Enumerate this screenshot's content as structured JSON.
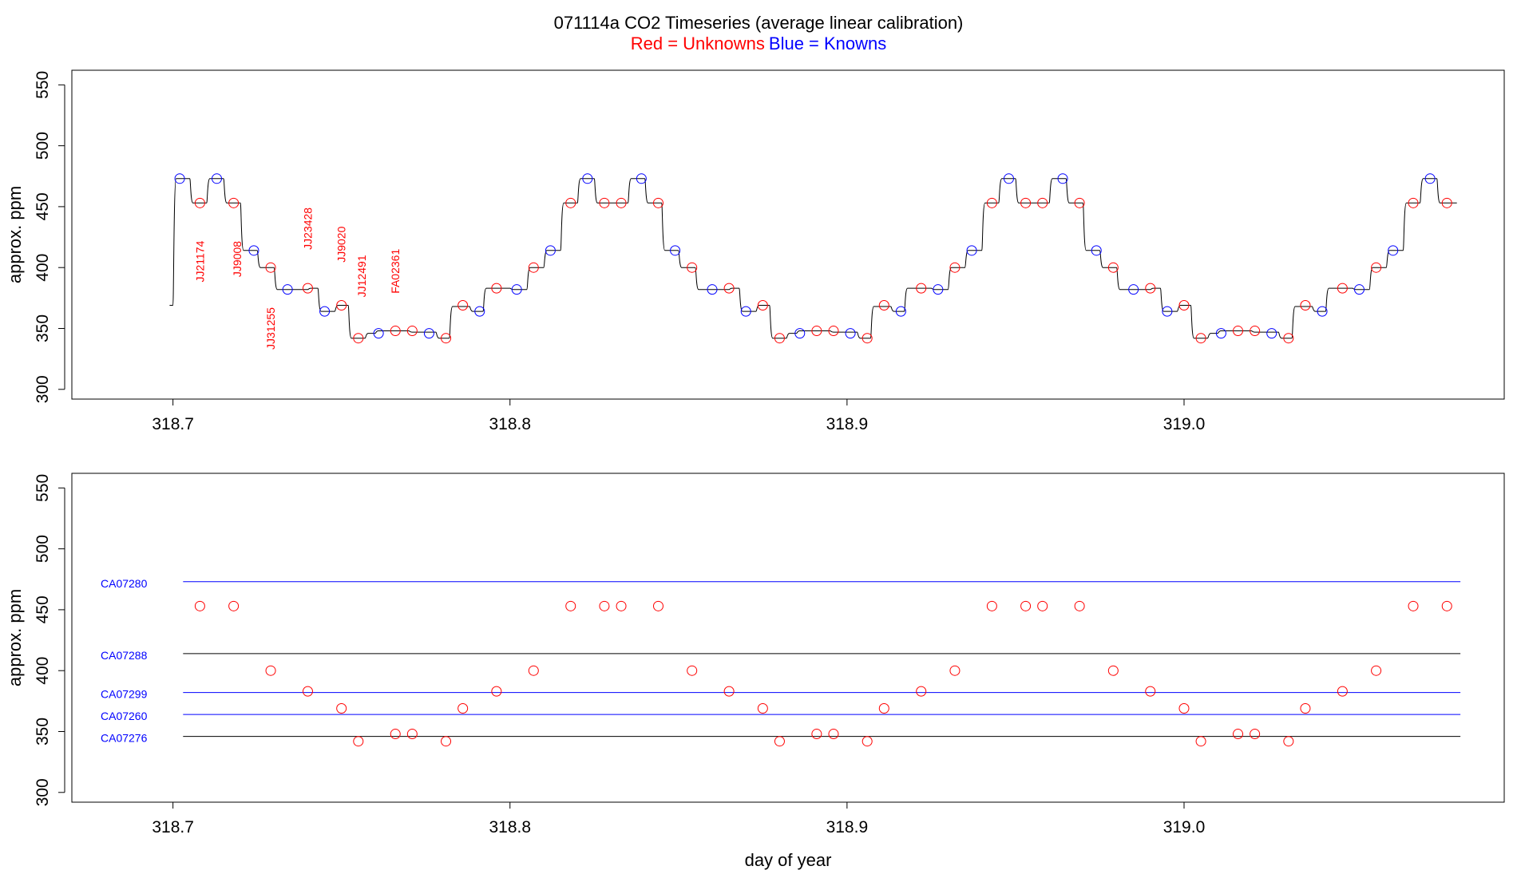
{
  "title": "071114a   CO2 Timeseries (average linear calibration)",
  "subtitle": {
    "red_part": "Red = Unknowns",
    "blue_part": "Blue = Knowns"
  },
  "colors": {
    "unknown": "#ff0000",
    "known": "#0000ff",
    "line": "#000000"
  },
  "chart_data": [
    {
      "type": "line",
      "ylabel": "approx. ppm",
      "xlabel": "",
      "xlim": [
        318.67,
        319.095
      ],
      "ylim": [
        292,
        562
      ],
      "x_ticks": [
        "318.7",
        "318.8",
        "318.9",
        "319.0"
      ],
      "y_ticks": [
        "300",
        "350",
        "400",
        "450",
        "500",
        "550"
      ],
      "trace": {
        "start": [
          318.699,
          369
        ],
        "steps": [
          [
            318.7,
            473
          ],
          [
            318.705,
            453
          ],
          [
            318.71,
            473
          ],
          [
            318.715,
            453
          ],
          [
            318.72,
            414
          ],
          [
            318.725,
            400
          ],
          [
            318.73,
            382
          ],
          [
            318.74,
            383
          ],
          [
            318.743,
            364
          ],
          [
            318.748,
            369
          ],
          [
            318.752,
            342
          ],
          [
            318.757,
            346
          ],
          [
            318.76,
            348
          ],
          [
            318.77,
            347
          ],
          [
            318.778,
            342
          ],
          [
            318.782,
            368
          ],
          [
            318.788,
            364
          ],
          [
            318.792,
            383
          ],
          [
            318.8,
            382
          ],
          [
            318.805,
            400
          ],
          [
            318.81,
            414
          ],
          [
            318.815,
            453
          ],
          [
            318.82,
            473
          ],
          [
            318.825,
            453
          ],
          [
            318.835,
            473
          ],
          [
            318.84,
            453
          ],
          [
            318.845,
            414
          ],
          [
            318.85,
            400
          ],
          [
            318.855,
            382
          ],
          [
            318.865,
            383
          ],
          [
            318.868,
            364
          ],
          [
            318.873,
            369
          ],
          [
            318.877,
            342
          ],
          [
            318.882,
            346
          ],
          [
            318.885,
            348
          ],
          [
            318.895,
            347
          ],
          [
            318.903,
            342
          ],
          [
            318.907,
            368
          ],
          [
            318.913,
            364
          ],
          [
            318.917,
            383
          ],
          [
            318.925,
            382
          ],
          [
            318.93,
            400
          ],
          [
            318.935,
            414
          ],
          [
            318.94,
            453
          ],
          [
            318.945,
            473
          ],
          [
            318.95,
            453
          ],
          [
            318.96,
            473
          ],
          [
            318.965,
            453
          ],
          [
            318.97,
            414
          ],
          [
            318.975,
            400
          ],
          [
            318.98,
            382
          ],
          [
            318.99,
            383
          ],
          [
            318.993,
            364
          ],
          [
            318.998,
            369
          ],
          [
            319.002,
            342
          ],
          [
            319.007,
            346
          ],
          [
            319.01,
            348
          ],
          [
            319.02,
            347
          ],
          [
            319.028,
            342
          ],
          [
            319.032,
            368
          ],
          [
            319.038,
            364
          ],
          [
            319.042,
            383
          ],
          [
            319.05,
            382
          ],
          [
            319.055,
            400
          ],
          [
            319.06,
            414
          ],
          [
            319.065,
            453
          ],
          [
            319.07,
            473
          ],
          [
            319.075,
            453
          ],
          [
            319.08,
            453
          ]
        ]
      },
      "knowns": {
        "x": [
          318.702,
          318.713,
          318.724,
          318.734,
          318.745,
          318.761,
          318.776,
          318.791,
          318.802,
          318.812,
          318.823,
          318.839,
          318.849,
          318.86,
          318.87,
          318.886,
          318.901,
          318.916,
          318.927,
          318.937,
          318.948,
          318.964,
          318.974,
          318.985,
          318.995,
          319.011,
          319.026,
          319.041,
          319.052,
          319.062,
          319.073
        ],
        "y": [
          473,
          473,
          414,
          382,
          364,
          346,
          346,
          364,
          382,
          414,
          473,
          473,
          414,
          382,
          364,
          346,
          346,
          364,
          382,
          414,
          473,
          473,
          414,
          382,
          364,
          346,
          346,
          364,
          382,
          414,
          473
        ]
      },
      "unknowns": {
        "x": [
          318.708,
          318.718,
          318.729,
          318.74,
          318.75,
          318.755,
          318.766,
          318.771,
          318.781,
          318.786,
          318.796,
          318.807,
          318.818,
          318.828,
          318.833,
          318.844,
          318.854,
          318.865,
          318.875,
          318.88,
          318.891,
          318.896,
          318.906,
          318.911,
          318.922,
          318.932,
          318.943,
          318.953,
          318.958,
          318.969,
          318.979,
          318.99,
          319.0,
          319.005,
          319.016,
          319.021,
          319.031,
          319.036,
          319.047,
          319.057,
          319.068,
          319.078
        ],
        "y": [
          453,
          453,
          400,
          383,
          369,
          342,
          348,
          348,
          342,
          369,
          383,
          400,
          453,
          453,
          453,
          453,
          400,
          383,
          369,
          342,
          348,
          348,
          342,
          369,
          383,
          400,
          453,
          453,
          453,
          453,
          400,
          383,
          369,
          342,
          348,
          348,
          342,
          369,
          383,
          400,
          453,
          453
        ]
      },
      "annotations": [
        {
          "text": "JJ21174",
          "x": 318.708,
          "y": 405
        },
        {
          "text": "JJ9008",
          "x": 318.719,
          "y": 407
        },
        {
          "text": "JJ31255",
          "x": 318.729,
          "y": 350
        },
        {
          "text": "JJ23428",
          "x": 318.74,
          "y": 432
        },
        {
          "text": "JJ9020",
          "x": 318.75,
          "y": 419
        },
        {
          "text": "JJ12491",
          "x": 318.756,
          "y": 393
        },
        {
          "text": "FA02361",
          "x": 318.766,
          "y": 397
        }
      ]
    },
    {
      "type": "scatter",
      "ylabel": "approx. ppm",
      "xlabel": "day of year",
      "xlim": [
        318.67,
        319.095
      ],
      "ylim": [
        292,
        562
      ],
      "x_ticks": [
        "318.7",
        "318.8",
        "318.9",
        "319.0"
      ],
      "y_ticks": [
        "300",
        "350",
        "400",
        "450",
        "500",
        "550"
      ],
      "reference_lines": [
        {
          "name": "CA07280",
          "y": 473,
          "color": "#0000ff"
        },
        {
          "name": "CA07288",
          "y": 414,
          "color": "#000000"
        },
        {
          "name": "CA07299",
          "y": 382,
          "color": "#0000ff"
        },
        {
          "name": "CA07260",
          "y": 364,
          "color": "#0000ff"
        },
        {
          "name": "CA07276",
          "y": 346,
          "color": "#000000"
        }
      ],
      "line_x": [
        318.703,
        319.082
      ],
      "unknowns": {
        "x": [
          318.708,
          318.718,
          318.729,
          318.74,
          318.75,
          318.755,
          318.766,
          318.771,
          318.781,
          318.786,
          318.796,
          318.807,
          318.818,
          318.828,
          318.833,
          318.844,
          318.854,
          318.865,
          318.875,
          318.88,
          318.891,
          318.896,
          318.906,
          318.911,
          318.922,
          318.932,
          318.943,
          318.953,
          318.958,
          318.969,
          318.979,
          318.99,
          319.0,
          319.005,
          319.016,
          319.021,
          319.031,
          319.036,
          319.047,
          319.057,
          319.068,
          319.078
        ],
        "y": [
          453,
          453,
          400,
          383,
          369,
          342,
          348,
          348,
          342,
          369,
          383,
          400,
          453,
          453,
          453,
          453,
          400,
          383,
          369,
          342,
          348,
          348,
          342,
          369,
          383,
          400,
          453,
          453,
          453,
          453,
          400,
          383,
          369,
          342,
          348,
          348,
          342,
          369,
          383,
          400,
          453,
          453
        ]
      }
    }
  ]
}
